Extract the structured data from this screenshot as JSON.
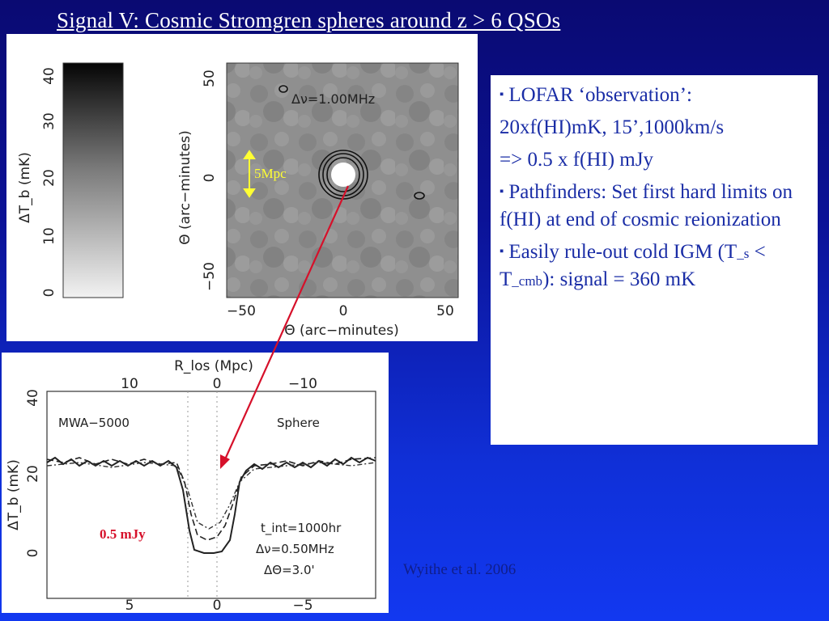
{
  "title": "Signal V: Cosmic Stromgren spheres around z > 6 QSOs",
  "top_figure": {
    "colorbar_label": "ΔT_b (mK)",
    "colorbar_ticks": [
      "40",
      "30",
      "20",
      "10",
      "0"
    ],
    "y_axis_label": "Θ (arc−minutes)",
    "y_ticks": [
      "50",
      "0",
      "−50"
    ],
    "x_axis_label": "Θ (arc−minutes)",
    "x_ticks": [
      "−50",
      "0",
      "50"
    ],
    "annotation": "Δν=1.00MHz",
    "scale_label": "5Mpc"
  },
  "bottom_figure": {
    "top_axis_label": "R_los (Mpc)",
    "top_ticks": [
      "10",
      "0",
      "−10"
    ],
    "y_axis_label": "ΔT_b (mK)",
    "y_ticks": [
      "40",
      "20",
      "0"
    ],
    "x_ticks": [
      "5",
      "0",
      "−5"
    ],
    "left_label": "MWA−5000",
    "right_label": "Sphere",
    "info_lines": [
      "t_int=1000hr",
      "Δν=0.50MHz",
      "ΔΘ=3.0'"
    ],
    "flux_label": "0.5 mJy"
  },
  "bullets": [
    {
      "marker": "▪",
      "text": "LOFAR ‘observation’:"
    },
    {
      "marker": "",
      "text": "20xf(HI)mK, 15’,1000km/s"
    },
    {
      "marker": "",
      "text": "=> 0.5 x f(HI) mJy"
    },
    {
      "marker": "▪",
      "text": "Pathfinders: Set first hard limits on f(HI) at end of cosmic reionization"
    },
    {
      "marker": "▪",
      "text_parts": [
        "Easily rule-out cold IGM (T",
        "_s",
        " < T",
        "_cmb",
        "): signal = 360 mK"
      ]
    }
  ],
  "credit": "Wyithe et al. 2006",
  "colors": {
    "arrow": "#d6102a",
    "scale_bar": "#ffff33",
    "bullet_text": "#1a2da6"
  }
}
